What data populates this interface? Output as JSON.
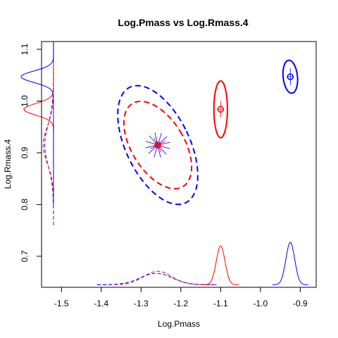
{
  "chart_data": {
    "type": "scatter",
    "title": "Log.Pmass vs Log.Rmass.4",
    "xlabel": "Log.Pmass",
    "ylabel": "Log.Rmass.4",
    "xlim": [
      -1.55,
      -0.86
    ],
    "ylim": [
      0.64,
      1.115
    ],
    "x_ticks": [
      -1.5,
      -1.4,
      -1.3,
      -1.2,
      -1.1,
      -1.0,
      -0.9
    ],
    "x_tick_labels": [
      "-1.5",
      "-1.4",
      "-1.3",
      "-1.2",
      "-1.1",
      "-1.0",
      "-0.9"
    ],
    "y_ticks": [
      0.7,
      0.8,
      0.9,
      1.0,
      1.1
    ],
    "y_tick_labels": [
      "0.7",
      "0.8",
      "0.9",
      "1.0",
      "1.1"
    ],
    "colors": {
      "red": "#ff0000",
      "blue": "#0000ff"
    },
    "points": [
      {
        "x": -1.258,
        "y": 0.915,
        "color": "#0000ff"
      },
      {
        "x": -1.258,
        "y": 0.915,
        "color": "#ff0000"
      },
      {
        "x": -1.1,
        "y": 0.984,
        "color": "#ff0000"
      },
      {
        "x": -0.925,
        "y": 1.047,
        "color": "#0000ff"
      }
    ],
    "ellipses": [
      {
        "cx": -1.258,
        "cy": 0.915,
        "rx": 0.066,
        "ry": 0.094,
        "rot": -0.55,
        "color": "#ff0000",
        "dashed": true
      },
      {
        "cx": -1.258,
        "cy": 0.915,
        "rx": 0.08,
        "ry": 0.124,
        "rot": -0.45,
        "color": "#0000ff",
        "dashed": true
      },
      {
        "cx": -1.1,
        "cy": 0.984,
        "rx": 0.017,
        "ry": 0.055,
        "rot": 0.0,
        "color": "#ff0000",
        "dashed": false
      },
      {
        "cx": -0.925,
        "cy": 1.047,
        "rx": 0.018,
        "ry": 0.032,
        "rot": -0.1,
        "color": "#0000ff",
        "dashed": false
      }
    ],
    "x_densities": [
      {
        "mean": -1.258,
        "sd": 0.035,
        "height": 0.026,
        "color": "#ff0000",
        "dashed": true,
        "range": [
          -1.41,
          -1.11
        ]
      },
      {
        "mean": -1.262,
        "sd": 0.04,
        "height": 0.022,
        "color": "#0000ff",
        "dashed": true,
        "range": [
          -1.41,
          -1.11
        ]
      },
      {
        "mean": -1.1,
        "sd": 0.011,
        "height": 0.075,
        "color": "#ff0000",
        "dashed": false,
        "range": [
          -1.145,
          -1.055
        ]
      },
      {
        "mean": -0.925,
        "sd": 0.011,
        "height": 0.082,
        "color": "#0000ff",
        "dashed": false,
        "range": [
          -0.97,
          -0.88
        ]
      }
    ],
    "x_density_baseline": 0.645,
    "y_density_baseline": -1.52,
    "y_densities": [
      {
        "mean": 0.915,
        "sd": 0.04,
        "height": 0.022,
        "color": "#0000ff",
        "dashed": true,
        "range": [
          0.76,
          1.115
        ]
      },
      {
        "mean": 0.915,
        "sd": 0.035,
        "height": 0.026,
        "color": "#ff0000",
        "dashed": true,
        "range": [
          0.76,
          1.115
        ]
      },
      {
        "mean": 0.984,
        "sd": 0.011,
        "height": 0.075,
        "color": "#ff0000",
        "dashed": false,
        "range": [
          0.8,
          1.115
        ]
      },
      {
        "mean": 1.047,
        "sd": 0.011,
        "height": 0.082,
        "color": "#0000ff",
        "dashed": false,
        "range": [
          0.8,
          1.115
        ]
      }
    ]
  }
}
